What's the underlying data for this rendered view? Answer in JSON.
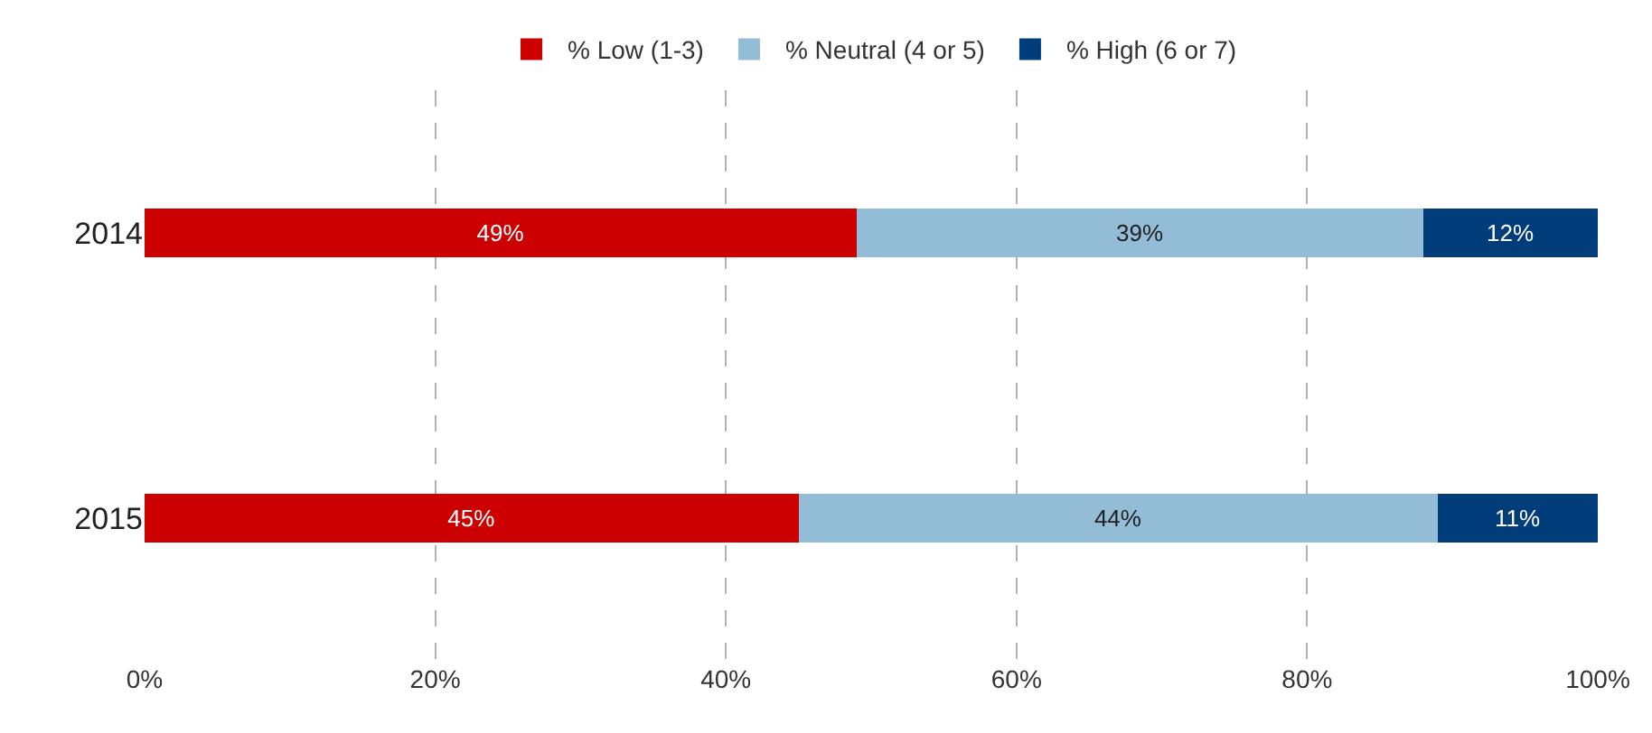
{
  "chart_data": {
    "type": "bar",
    "orientation": "horizontal",
    "stacked": true,
    "categories": [
      "2014",
      "2015"
    ],
    "series": [
      {
        "name": "% Low (1-3)",
        "color": "#cc0000",
        "values": [
          49,
          45
        ],
        "value_labels": [
          "49%",
          "45%"
        ]
      },
      {
        "name": "% Neutral (4 or 5)",
        "color": "#93bcd6",
        "values": [
          39,
          44
        ],
        "value_labels": [
          "39%",
          "44%"
        ]
      },
      {
        "name": "% High (6 or 7)",
        "color": "#003d7a",
        "values": [
          12,
          11
        ],
        "value_labels": [
          "12%",
          "11%"
        ]
      }
    ],
    "xlim": [
      0,
      100
    ],
    "xticks": [
      {
        "value": 0,
        "label": "0%"
      },
      {
        "value": 20,
        "label": "20%"
      },
      {
        "value": 40,
        "label": "40%"
      },
      {
        "value": 60,
        "label": "60%"
      },
      {
        "value": 80,
        "label": "80%"
      },
      {
        "value": 100,
        "label": "100%"
      }
    ],
    "grid": "x",
    "legend": "top"
  }
}
